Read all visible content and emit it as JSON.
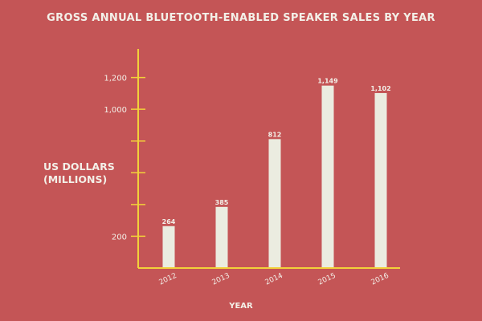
{
  "colors": {
    "background": "#c45556",
    "axis": "#f2d13a",
    "bar": "#ebece0",
    "text": "#f3f0e8"
  },
  "chart_data": {
    "type": "bar",
    "title": "GROSS ANNUAL BLUETOOTH-ENABLED SPEAKER SALES BY YEAR",
    "ylabel_lines": [
      "US DOLLARS",
      "(MILLIONS)"
    ],
    "xlabel": "YEAR",
    "categories": [
      "2012",
      "2013",
      "2014",
      "2015",
      "2016"
    ],
    "values": [
      264,
      385,
      812,
      1149,
      1102
    ],
    "data_labels": [
      "264",
      "385",
      "812",
      "1,149",
      "1,102"
    ],
    "ylim": [
      0,
      1400
    ],
    "y_ticks": [
      200,
      400,
      600,
      800,
      1000,
      1200
    ],
    "y_tick_labels": [
      "200",
      "",
      "",
      "",
      "1,000",
      "1,200"
    ],
    "grid": false,
    "legend": null
  }
}
